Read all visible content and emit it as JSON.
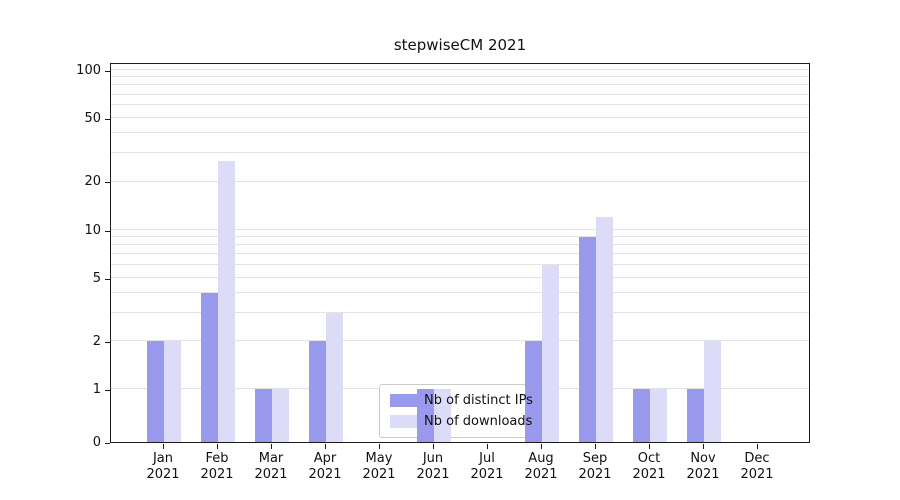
{
  "figure": {
    "title": "stepwiseCM 2021"
  },
  "chart_data": {
    "type": "bar",
    "title": "stepwiseCM 2021",
    "categories": [
      "Jan 2021",
      "Feb 2021",
      "Mar 2021",
      "Apr 2021",
      "May 2021",
      "Jun 2021",
      "Jul 2021",
      "Aug 2021",
      "Sep 2021",
      "Oct 2021",
      "Nov 2021",
      "Dec 2021"
    ],
    "months": [
      "Jan",
      "Feb",
      "Mar",
      "Apr",
      "May",
      "Jun",
      "Jul",
      "Aug",
      "Sep",
      "Oct",
      "Nov",
      "Dec"
    ],
    "year": "2021",
    "series": [
      {
        "name": "Nb of distinct IPs",
        "color": "#9999ee",
        "values": [
          2,
          4,
          1,
          2,
          0,
          1,
          0,
          2,
          9,
          1,
          1,
          0
        ]
      },
      {
        "name": "Nb of downloads",
        "color": "#dcdcf9",
        "values": [
          2,
          27,
          1,
          3,
          0,
          1,
          0,
          6,
          12,
          1,
          2,
          0
        ]
      }
    ],
    "yscale": "symlog",
    "ylim": [
      0,
      100
    ],
    "yticks": [
      0,
      1,
      2,
      5,
      10,
      20,
      50,
      100
    ],
    "minor_gridlines": [
      1,
      2,
      3,
      4,
      5,
      6,
      7,
      8,
      9,
      10,
      20,
      30,
      40,
      50,
      60,
      70,
      80,
      90,
      100
    ],
    "grid": true,
    "legend_position": "lower center",
    "colors": {
      "grid": "#e3e3e3",
      "spine": "#1a1a1a",
      "legend_border": "#cccccc",
      "background": "#ffffff"
    }
  }
}
